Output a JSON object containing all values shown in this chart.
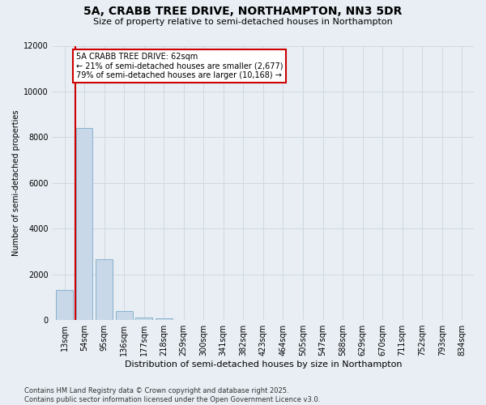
{
  "title_line1": "5A, CRABB TREE DRIVE, NORTHAMPTON, NN3 5DR",
  "title_line2": "Size of property relative to semi-detached houses in Northampton",
  "xlabel": "Distribution of semi-detached houses by size in Northampton",
  "ylabel": "Number of semi-detached properties",
  "categories": [
    "13sqm",
    "54sqm",
    "95sqm",
    "136sqm",
    "177sqm",
    "218sqm",
    "259sqm",
    "300sqm",
    "341sqm",
    "382sqm",
    "423sqm",
    "464sqm",
    "505sqm",
    "547sqm",
    "588sqm",
    "629sqm",
    "670sqm",
    "711sqm",
    "752sqm",
    "793sqm",
    "834sqm"
  ],
  "values": [
    1300,
    8400,
    2650,
    390,
    120,
    60,
    0,
    0,
    0,
    0,
    0,
    0,
    0,
    0,
    0,
    0,
    0,
    0,
    0,
    0,
    0
  ],
  "bar_color": "#c8d8e8",
  "bar_edge_color": "#7aaac8",
  "grid_color": "#d0d8e0",
  "vline_x": 1.0,
  "vline_color": "#cc0000",
  "annotation_box_color": "#cc0000",
  "annotation_title": "5A CRABB TREE DRIVE: 62sqm",
  "annotation_line1": "← 21% of semi-detached houses are smaller (2,677)",
  "annotation_line2": "79% of semi-detached houses are larger (10,168) →",
  "ylim": [
    0,
    12000
  ],
  "yticks": [
    0,
    2000,
    4000,
    6000,
    8000,
    10000,
    12000
  ],
  "footer_line1": "Contains HM Land Registry data © Crown copyright and database right 2025.",
  "footer_line2": "Contains public sector information licensed under the Open Government Licence v3.0.",
  "bg_color": "#e8eef4",
  "plot_bg_color": "#e8eef4",
  "title_fontsize": 10,
  "subtitle_fontsize": 8,
  "tick_fontsize": 7,
  "ylabel_fontsize": 7,
  "xlabel_fontsize": 8,
  "annotation_fontsize": 7,
  "footer_fontsize": 6
}
